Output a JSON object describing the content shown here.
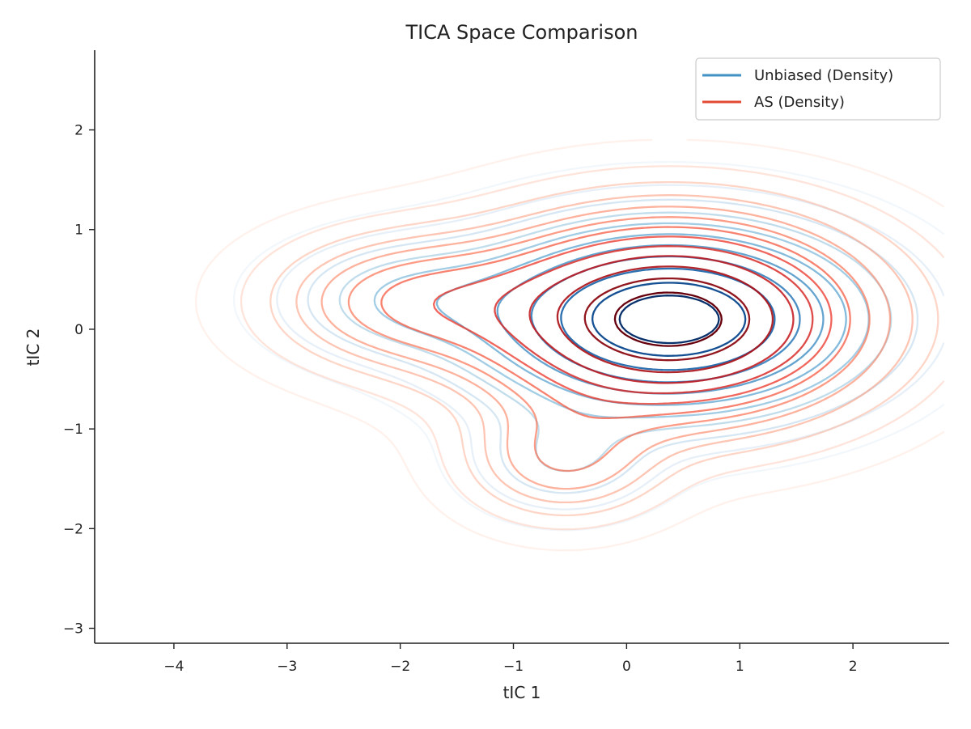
{
  "chart_data": {
    "type": "contour",
    "title": "TICA Space Comparison",
    "xlabel": "tIC 1",
    "ylabel": "tIC 2",
    "xlim": [
      -4.7,
      2.85
    ],
    "ylim": [
      -3.15,
      2.8
    ],
    "x_ticks": [
      -4,
      -3,
      -2,
      -1,
      0,
      1,
      2
    ],
    "y_ticks": [
      -3,
      -2,
      -1,
      0,
      1,
      2
    ],
    "x_tick_labels": [
      "−4",
      "−3",
      "−2",
      "−1",
      "0",
      "1",
      "2"
    ],
    "y_tick_labels": [
      "−3",
      "−2",
      "−1",
      "0",
      "1",
      "2"
    ],
    "grid": false,
    "legend_position": "top-right",
    "series": [
      {
        "name": "Unbiased (Density)",
        "color": "#4292c6",
        "colormap": "Blues",
        "components": [
          {
            "cx": 0.38,
            "cy": 0.1,
            "sx": 0.95,
            "sy": 0.52,
            "w": 1.0
          },
          {
            "cx": -1.9,
            "cy": 0.3,
            "sx": 0.65,
            "sy": 0.35,
            "w": 0.18
          },
          {
            "cx": -0.55,
            "cy": -1.3,
            "sx": 0.48,
            "sy": 0.32,
            "w": 0.12
          }
        ],
        "levels": [
          0.01,
          0.035,
          0.07,
          0.12,
          0.18,
          0.26,
          0.36,
          0.48,
          0.62,
          0.78,
          0.9
        ]
      },
      {
        "name": "AS (Density)",
        "color": "#e34a33",
        "colormap": "Reds",
        "components": [
          {
            "cx": 0.38,
            "cy": 0.1,
            "sx": 1.0,
            "sy": 0.58,
            "w": 1.0
          },
          {
            "cx": -1.9,
            "cy": 0.28,
            "sx": 0.72,
            "sy": 0.4,
            "w": 0.26
          },
          {
            "cx": -0.55,
            "cy": -1.3,
            "sx": 0.52,
            "sy": 0.36,
            "w": 0.2
          }
        ],
        "levels": [
          0.008,
          0.03,
          0.06,
          0.1,
          0.15,
          0.21,
          0.28,
          0.36,
          0.45,
          0.55,
          0.66,
          0.78,
          0.9
        ]
      }
    ]
  }
}
